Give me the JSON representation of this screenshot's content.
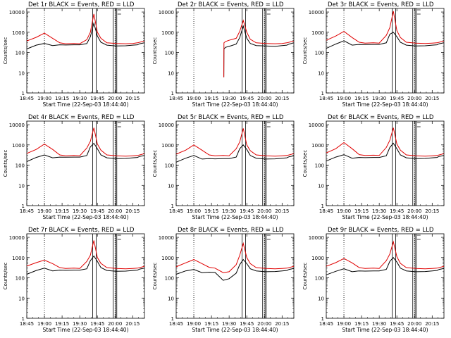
{
  "figure": {
    "axis_ylabel": "Counts/sec",
    "axis_xlabel": "Start Time (22-Sep-03 18:44:40)",
    "x_tick_labels": [
      "18:45",
      "19:00",
      "19:15",
      "19:30",
      "19:45",
      "20:00",
      "20:15"
    ],
    "y_tick_labels": [
      "1",
      "10",
      "100",
      "1000",
      "10000"
    ],
    "colors": {
      "events": "#000000",
      "lld": "#e00000",
      "axes": "#000000"
    }
  },
  "chart_data": [
    {
      "type": "line",
      "title": "Det 1r BLACK = Events, RED = LLD",
      "x_unit": "minutes since 18:44:40",
      "xlim": [
        0,
        100
      ],
      "ylim": [
        1,
        15000
      ],
      "y_scale": "log",
      "x_ticks": [
        0,
        15,
        30,
        45,
        60,
        75,
        90
      ],
      "dotted_verticals": [
        15,
        75
      ],
      "solid_verticals": [
        56,
        59,
        73.5,
        75.5,
        76.5
      ],
      "series": [
        {
          "name": "Events",
          "x": [
            0,
            8,
            15,
            22,
            28,
            33,
            40,
            45,
            51,
            54,
            57,
            60,
            63,
            68,
            76,
            84,
            90,
            94,
            96,
            100
          ],
          "values": [
            150,
            230,
            280,
            220,
            240,
            235,
            240,
            240,
            275,
            600,
            2800,
            650,
            320,
            230,
            210,
            215,
            230,
            240,
            270,
            300
          ]
        },
        {
          "name": "LLD",
          "x": [
            0,
            8,
            15,
            22,
            28,
            33,
            40,
            45,
            51,
            54,
            57,
            60,
            63,
            68,
            76,
            84,
            90,
            94,
            96,
            100
          ],
          "values": [
            370,
            560,
            900,
            500,
            300,
            270,
            280,
            270,
            430,
            1000,
            8000,
            1000,
            500,
            300,
            280,
            270,
            280,
            300,
            320,
            370
          ]
        }
      ]
    },
    {
      "type": "line",
      "title": "Det 2r BLACK = Events, RED = LLD",
      "x_unit": "minutes since 18:44:40",
      "xlim": [
        0,
        100
      ],
      "ylim": [
        1,
        15000
      ],
      "y_scale": "log",
      "x_ticks": [
        0,
        15,
        30,
        45,
        60,
        75,
        90
      ],
      "dotted_verticals": [
        15,
        75
      ],
      "solid_verticals": [
        56,
        59,
        73.5,
        75.5,
        76.5
      ],
      "series": [
        {
          "name": "Events",
          "x": [
            40.5,
            40.6,
            42,
            45,
            51,
            54,
            57,
            60,
            63,
            68,
            76,
            84,
            90,
            94,
            96,
            100
          ],
          "values": [
            6,
            150,
            180,
            200,
            260,
            550,
            2000,
            500,
            280,
            220,
            210,
            200,
            220,
            230,
            260,
            300
          ]
        },
        {
          "name": "LLD",
          "x": [
            40.5,
            40.6,
            42,
            45,
            51,
            54,
            57,
            60,
            63,
            68,
            76,
            84,
            90,
            94,
            96,
            100
          ],
          "values": [
            6,
            300,
            350,
            400,
            500,
            1100,
            3800,
            1000,
            450,
            300,
            280,
            270,
            280,
            300,
            320,
            370
          ]
        }
      ]
    },
    {
      "type": "line",
      "title": "Det 3r BLACK = Events, RED = LLD",
      "x_unit": "minutes since 18:44:40",
      "xlim": [
        0,
        100
      ],
      "ylim": [
        1,
        15000
      ],
      "y_scale": "log",
      "x_ticks": [
        0,
        15,
        30,
        45,
        60,
        75,
        90
      ],
      "dotted_verticals": [
        15,
        75
      ],
      "solid_verticals": [
        56,
        59,
        73.5,
        75.5,
        76.5
      ],
      "series": [
        {
          "name": "Events",
          "x": [
            0,
            8,
            15,
            22,
            28,
            33,
            40,
            45,
            51,
            54,
            57,
            60,
            63,
            68,
            76,
            84,
            90,
            94,
            96,
            100
          ],
          "values": [
            160,
            260,
            380,
            230,
            250,
            245,
            250,
            250,
            300,
            800,
            1000,
            600,
            320,
            230,
            210,
            215,
            230,
            240,
            270,
            300
          ]
        },
        {
          "name": "LLD",
          "x": [
            0,
            8,
            15,
            22,
            28,
            33,
            40,
            45,
            51,
            54,
            57,
            60,
            63,
            68,
            76,
            84,
            90,
            94,
            96,
            100
          ],
          "values": [
            400,
            650,
            1100,
            550,
            320,
            290,
            300,
            290,
            700,
            1700,
            11000,
            1200,
            550,
            320,
            290,
            280,
            290,
            300,
            320,
            370
          ]
        }
      ]
    },
    {
      "type": "line",
      "title": "Det 4r BLACK = Events, RED = LLD",
      "x_unit": "minutes since 18:44:40",
      "xlim": [
        0,
        100
      ],
      "ylim": [
        1,
        15000
      ],
      "y_scale": "log",
      "x_ticks": [
        0,
        15,
        30,
        45,
        60,
        75,
        90
      ],
      "dotted_verticals": [
        15,
        75
      ],
      "solid_verticals": [
        56,
        59,
        73.5,
        75.5,
        76.5
      ],
      "series": [
        {
          "name": "Events",
          "x": [
            0,
            8,
            15,
            22,
            28,
            33,
            40,
            45,
            51,
            54,
            57,
            60,
            63,
            68,
            76,
            84,
            90,
            94,
            96,
            100
          ],
          "values": [
            150,
            240,
            320,
            230,
            250,
            245,
            250,
            250,
            300,
            800,
            1200,
            650,
            320,
            230,
            210,
            215,
            230,
            240,
            270,
            300
          ]
        },
        {
          "name": "LLD",
          "x": [
            0,
            8,
            15,
            22,
            28,
            33,
            40,
            45,
            51,
            54,
            57,
            60,
            63,
            68,
            76,
            84,
            90,
            94,
            96,
            100
          ],
          "values": [
            380,
            600,
            1100,
            600,
            320,
            290,
            300,
            290,
            700,
            1500,
            7000,
            1100,
            550,
            320,
            290,
            280,
            290,
            300,
            320,
            370
          ]
        }
      ]
    },
    {
      "type": "line",
      "title": "Det 5r BLACK = Events, RED = LLD",
      "x_unit": "minutes since 18:44:40",
      "xlim": [
        0,
        100
      ],
      "ylim": [
        1,
        15000
      ],
      "y_scale": "log",
      "x_ticks": [
        0,
        15,
        30,
        45,
        60,
        75,
        90
      ],
      "dotted_verticals": [
        15,
        75
      ],
      "solid_verticals": [
        56,
        59,
        73.5,
        75.5,
        76.5
      ],
      "series": [
        {
          "name": "Events",
          "x": [
            0,
            8,
            15,
            22,
            28,
            33,
            40,
            45,
            51,
            54,
            57,
            60,
            63,
            68,
            76,
            84,
            90,
            94,
            96,
            100
          ],
          "values": [
            140,
            220,
            300,
            200,
            210,
            205,
            210,
            210,
            250,
            650,
            1000,
            600,
            300,
            220,
            200,
            205,
            220,
            230,
            260,
            290
          ]
        },
        {
          "name": "LLD",
          "x": [
            0,
            8,
            15,
            22,
            28,
            33,
            40,
            45,
            51,
            54,
            57,
            60,
            63,
            68,
            76,
            84,
            90,
            94,
            96,
            100
          ],
          "values": [
            350,
            550,
            1000,
            550,
            320,
            290,
            300,
            290,
            650,
            1400,
            6500,
            1000,
            520,
            320,
            290,
            280,
            290,
            300,
            320,
            370
          ]
        }
      ]
    },
    {
      "type": "line",
      "title": "Det 6r BLACK = Events, RED = LLD",
      "x_unit": "minutes since 18:44:40",
      "xlim": [
        0,
        100
      ],
      "ylim": [
        1,
        15000
      ],
      "y_scale": "log",
      "x_ticks": [
        0,
        15,
        30,
        45,
        60,
        75,
        90
      ],
      "dotted_verticals": [
        15,
        75
      ],
      "solid_verticals": [
        56,
        59,
        73.5,
        75.5,
        76.5
      ],
      "series": [
        {
          "name": "Events",
          "x": [
            0,
            8,
            15,
            22,
            28,
            33,
            40,
            45,
            51,
            54,
            57,
            60,
            63,
            68,
            76,
            84,
            90,
            94,
            96,
            100
          ],
          "values": [
            160,
            250,
            330,
            220,
            240,
            235,
            240,
            240,
            290,
            750,
            1200,
            650,
            320,
            230,
            210,
            215,
            230,
            240,
            270,
            300
          ]
        },
        {
          "name": "LLD",
          "x": [
            0,
            8,
            15,
            22,
            28,
            33,
            40,
            45,
            51,
            54,
            57,
            60,
            63,
            68,
            76,
            84,
            90,
            94,
            96,
            100
          ],
          "values": [
            400,
            650,
            1300,
            650,
            330,
            300,
            310,
            300,
            750,
            1700,
            7000,
            1100,
            550,
            320,
            290,
            280,
            290,
            300,
            320,
            370
          ]
        }
      ]
    },
    {
      "type": "line",
      "title": "Det 7r BLACK = Events, RED = LLD",
      "x_unit": "minutes since 18:44:40",
      "xlim": [
        0,
        100
      ],
      "ylim": [
        1,
        15000
      ],
      "y_scale": "log",
      "x_ticks": [
        0,
        15,
        30,
        45,
        60,
        75,
        90
      ],
      "dotted_verticals": [
        15,
        75
      ],
      "solid_verticals": [
        56,
        59,
        73.5,
        75.5,
        76.5
      ],
      "series": [
        {
          "name": "Events",
          "x": [
            0,
            8,
            15,
            22,
            28,
            33,
            40,
            45,
            51,
            54,
            57,
            60,
            63,
            68,
            76,
            84,
            90,
            94,
            96,
            100
          ],
          "values": [
            150,
            230,
            300,
            220,
            240,
            235,
            240,
            240,
            280,
            700,
            1200,
            650,
            320,
            230,
            210,
            215,
            230,
            240,
            270,
            300
          ]
        },
        {
          "name": "LLD",
          "x": [
            0,
            8,
            15,
            22,
            28,
            33,
            40,
            45,
            51,
            54,
            57,
            60,
            63,
            68,
            76,
            84,
            90,
            94,
            96,
            100
          ],
          "values": [
            380,
            560,
            750,
            500,
            320,
            290,
            300,
            290,
            650,
            1300,
            7000,
            1000,
            520,
            320,
            290,
            280,
            290,
            300,
            320,
            370
          ]
        }
      ]
    },
    {
      "type": "line",
      "title": "Det 8r BLACK = Events, RED = LLD",
      "x_unit": "minutes since 18:44:40",
      "xlim": [
        0,
        100
      ],
      "ylim": [
        1,
        15000
      ],
      "y_scale": "log",
      "x_ticks": [
        0,
        15,
        30,
        45,
        60,
        75,
        90
      ],
      "dotted_verticals": [
        15,
        75
      ],
      "solid_verticals": [
        56,
        59,
        73.5,
        75.5,
        76.5
      ],
      "series": [
        {
          "name": "Events",
          "x": [
            0,
            8,
            15,
            22,
            28,
            33,
            40,
            45,
            51,
            54,
            57,
            60,
            63,
            68,
            76,
            84,
            90,
            94,
            96,
            100
          ],
          "values": [
            150,
            220,
            260,
            180,
            190,
            185,
            75,
            90,
            170,
            450,
            800,
            500,
            280,
            220,
            200,
            205,
            220,
            230,
            260,
            290
          ]
        },
        {
          "name": "LLD",
          "x": [
            0,
            8,
            15,
            22,
            28,
            33,
            40,
            45,
            51,
            54,
            57,
            60,
            63,
            68,
            76,
            84,
            90,
            94,
            96,
            100
          ],
          "values": [
            350,
            550,
            800,
            500,
            330,
            300,
            180,
            200,
            450,
            1300,
            5000,
            1000,
            500,
            320,
            290,
            280,
            290,
            300,
            320,
            370
          ]
        }
      ]
    },
    {
      "type": "line",
      "title": "Det 9r BLACK = Events, RED = LLD",
      "x_unit": "minutes since 18:44:40",
      "xlim": [
        0,
        100
      ],
      "ylim": [
        1,
        15000
      ],
      "y_scale": "log",
      "x_ticks": [
        0,
        15,
        30,
        45,
        60,
        75,
        90
      ],
      "dotted_verticals": [
        15,
        75
      ],
      "solid_verticals": [
        56,
        59,
        73.5,
        75.5,
        76.5
      ],
      "series": [
        {
          "name": "Events",
          "x": [
            0,
            8,
            15,
            22,
            28,
            33,
            40,
            45,
            51,
            54,
            57,
            60,
            63,
            68,
            76,
            84,
            90,
            94,
            96,
            100
          ],
          "values": [
            140,
            210,
            280,
            200,
            220,
            215,
            220,
            220,
            260,
            650,
            1000,
            600,
            300,
            220,
            200,
            205,
            220,
            230,
            260,
            290
          ]
        },
        {
          "name": "LLD",
          "x": [
            0,
            8,
            15,
            22,
            28,
            33,
            40,
            45,
            51,
            54,
            57,
            60,
            63,
            68,
            76,
            84,
            90,
            94,
            96,
            100
          ],
          "values": [
            370,
            560,
            900,
            550,
            320,
            290,
            300,
            290,
            700,
            1500,
            6000,
            1100,
            520,
            320,
            290,
            280,
            290,
            300,
            320,
            370
          ]
        }
      ]
    }
  ]
}
